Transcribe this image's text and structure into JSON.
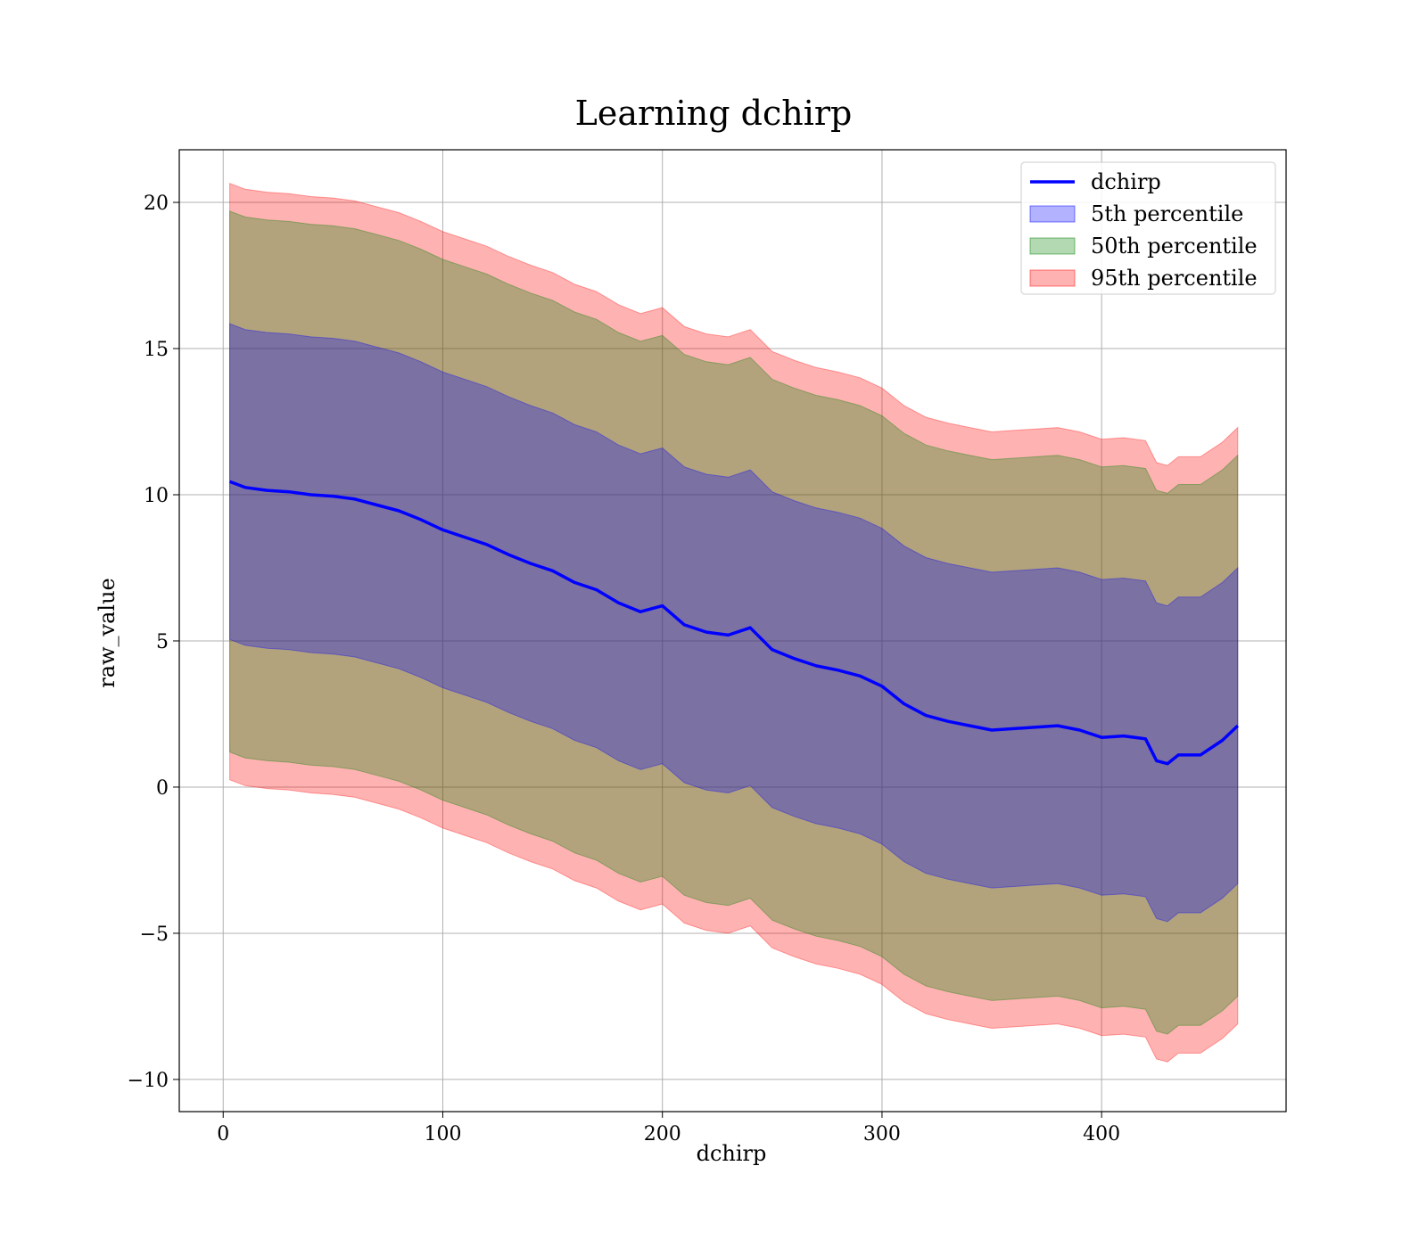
{
  "chart_data": {
    "type": "area",
    "title": "Learning dchirp",
    "xlabel": "dchirp",
    "ylabel": "raw_value",
    "xlim": [
      -20,
      484
    ],
    "ylim": [
      -11.1,
      21.8
    ],
    "x_ticks": [
      0,
      100,
      200,
      300,
      400
    ],
    "x_tick_labels": [
      "0",
      "100",
      "200",
      "300",
      "400"
    ],
    "y_ticks": [
      -10,
      -5,
      0,
      5,
      10,
      15,
      20
    ],
    "y_tick_labels": [
      "−10",
      "−5",
      "0",
      "5",
      "10",
      "15",
      "20"
    ],
    "grid": true,
    "legend_position": "top-right",
    "legend": [
      "dchirp",
      "5th percentile",
      "50th percentile",
      "95th percentile"
    ],
    "colors": {
      "line": "#0000ff",
      "band_5": "#0000ff",
      "band_50": "#008000",
      "band_95": "#ff0000",
      "grid": "#b0b0b0",
      "band_alpha": 0.3
    },
    "line": {
      "name": "dchirp",
      "x": [
        3,
        10,
        20,
        30,
        40,
        50,
        60,
        70,
        80,
        90,
        100,
        110,
        120,
        130,
        140,
        150,
        160,
        170,
        180,
        190,
        200,
        210,
        220,
        230,
        240,
        250,
        260,
        270,
        280,
        290,
        300,
        310,
        320,
        330,
        340,
        350,
        360,
        370,
        380,
        390,
        400,
        410,
        420,
        425,
        430,
        435,
        445,
        455,
        462
      ],
      "y": [
        10.45,
        10.25,
        10.15,
        10.1,
        10.0,
        9.95,
        9.85,
        9.65,
        9.45,
        9.15,
        8.8,
        8.55,
        8.3,
        7.95,
        7.65,
        7.4,
        7.0,
        6.75,
        6.3,
        6.0,
        6.2,
        5.55,
        5.3,
        5.2,
        5.45,
        4.7,
        4.4,
        4.15,
        4.0,
        3.8,
        3.45,
        2.85,
        2.45,
        2.25,
        2.1,
        1.95,
        2.0,
        2.05,
        2.1,
        1.95,
        1.7,
        1.75,
        1.65,
        0.9,
        0.8,
        1.1,
        1.1,
        1.6,
        2.1
      ]
    },
    "bands": [
      {
        "name": "95th percentile",
        "lower_offset": -10.2,
        "upper_offset": 10.2
      },
      {
        "name": "50th percentile",
        "lower_offset": -9.25,
        "upper_offset": 9.25
      },
      {
        "name": "5th percentile",
        "lower_offset": -5.4,
        "upper_offset": 5.4
      }
    ]
  }
}
